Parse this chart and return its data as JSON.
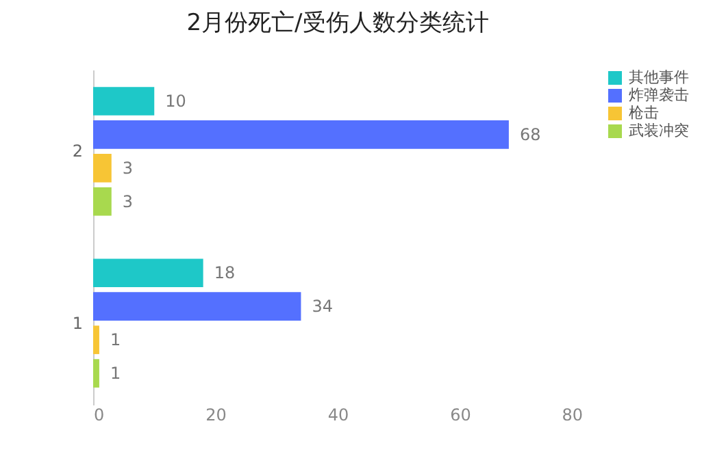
{
  "chart_data": {
    "type": "bar",
    "orientation": "horizontal",
    "title": "2月份死亡/受伤人数分类统计",
    "categories": [
      "2",
      "1"
    ],
    "series": [
      {
        "name": "其他事件",
        "color": "#1ec8c8",
        "values": [
          10,
          18
        ]
      },
      {
        "name": "炸弹袭击",
        "color": "#5470ff",
        "values": [
          68,
          34
        ]
      },
      {
        "name": "枪击",
        "color": "#f7c535",
        "values": [
          3,
          1
        ]
      },
      {
        "name": "武装冲突",
        "color": "#a8d94e",
        "values": [
          3,
          1
        ]
      }
    ],
    "xlim": [
      0,
      80
    ],
    "xticks": [
      0,
      20,
      40,
      60,
      80
    ],
    "grid": false,
    "legend": "right",
    "data_labels": true
  }
}
